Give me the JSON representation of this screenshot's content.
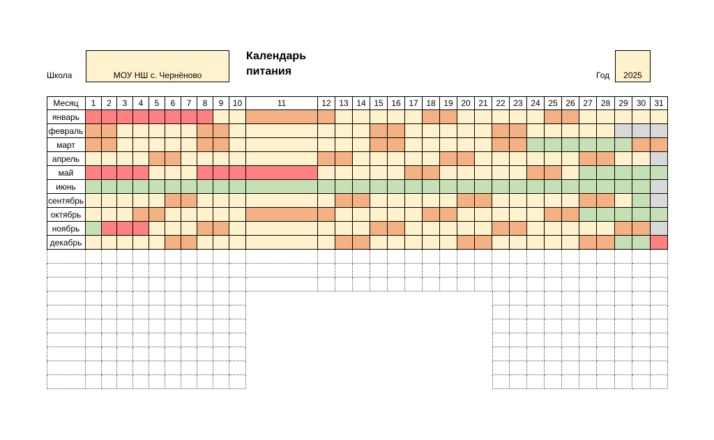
{
  "header": {
    "school_label": "Школа",
    "school_value": "МОУ НШ с. Чернёново",
    "title_line1": "Календарь",
    "title_line2": "питания",
    "year_label": "Год",
    "year_value": "2025"
  },
  "table": {
    "month_header": "Месяц",
    "days": [
      "1",
      "2",
      "3",
      "4",
      "5",
      "6",
      "7",
      "8",
      "9",
      "10",
      "11",
      "12",
      "13",
      "14",
      "15",
      "16",
      "17",
      "18",
      "19",
      "20",
      "21",
      "22",
      "23",
      "24",
      "25",
      "26",
      "27",
      "28",
      "29",
      "30",
      "31"
    ],
    "months": [
      "январь",
      "февраль",
      "март",
      "апрель",
      "май",
      "июнь",
      "сентябрь",
      "октябрь",
      "ноябрь",
      "декабрь"
    ],
    "legend_colors": {
      "Y": "#fff2cc",
      "O": "#f4b183",
      "R": "#ff8080",
      "G": "#c5e0b4",
      "X": "#d9d9d9"
    },
    "rows": [
      "RRRRRRRRYYOOYYYYYOOYYYYYOOYYYYY",
      "OOYYYYYOOYYYYYOOYYYYYOOYYYYYXXX",
      "OOYYYYYOOYYYYYOOYYYYYOOGGGGGGOO",
      "YYYYOOYYYYYOOYYYYYOOYYYYYYOOYYX",
      "RRRRYYYRRRRYYYYYOOYYYYYOOYGGGGG",
      "GGGGGGGGGGGGGGGGGGGGGGGGGGGGGGX",
      "YYYYYOOYYYYYOOYYYYYOOYYYYYOOYGX",
      "YYYOOYYYYYOOYYYYYOOYYYYYOOGGGGG",
      "GRRRYYYOOYYYYYOOYYYYYOOYYYYYOOX",
      "YYYYYOOYYYYYOOYYYYYOOYYYYYOOGGR"
    ]
  }
}
